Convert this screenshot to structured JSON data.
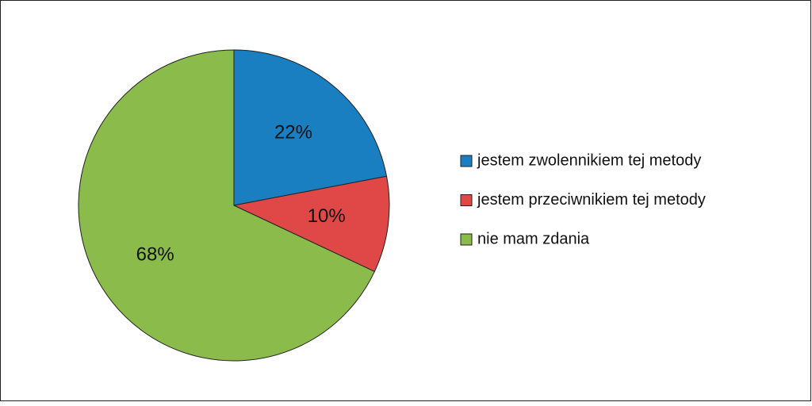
{
  "chart_data": {
    "type": "pie",
    "categories": [
      "jestem zwolennikiem tej metody",
      "jestem przeciwnikiem tej metody",
      "nie mam zdania"
    ],
    "values": [
      22,
      10,
      68
    ],
    "value_labels": [
      "22%",
      "10%",
      "68%"
    ],
    "colors": [
      "#1a7fc1",
      "#e04848",
      "#8bbb4a"
    ],
    "legend": "right"
  }
}
